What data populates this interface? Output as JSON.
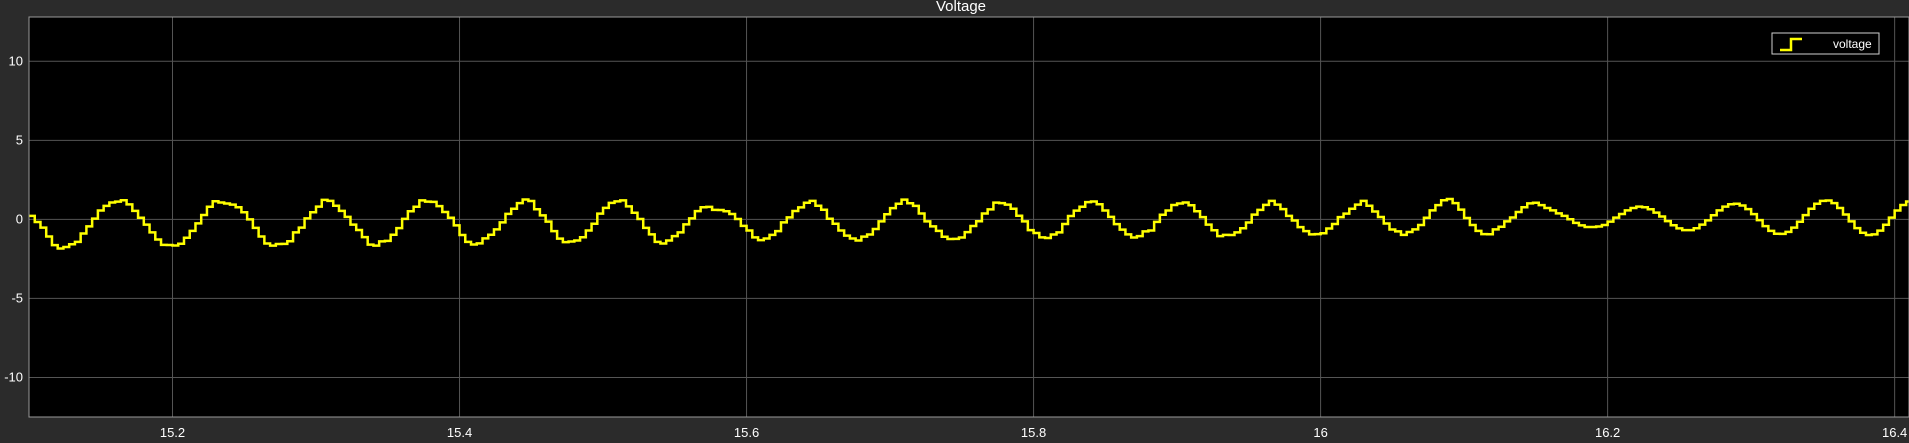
{
  "chart_data": {
    "type": "line",
    "title": "Voltage",
    "xlabel": "",
    "ylabel": "",
    "xlim": [
      15.1,
      16.41
    ],
    "ylim": [
      -12.5,
      12.8
    ],
    "grid": true,
    "legend_position": "top-right",
    "x_ticks": [
      15.2,
      15.4,
      15.6,
      15.8,
      16,
      16.2,
      16.4
    ],
    "x_tick_labels": [
      "15.2",
      "15.4",
      "15.6",
      "15.8",
      "16",
      "16.2",
      "16.4"
    ],
    "y_ticks": [
      10,
      5,
      0,
      -5,
      -10
    ],
    "y_tick_labels": [
      "10",
      "5",
      "0",
      "-5",
      "-10"
    ],
    "series": [
      {
        "name": "voltage",
        "color": "#ffff00",
        "step": true,
        "x": [
          15.1,
          15.104,
          15.108,
          15.112,
          15.116,
          15.12,
          15.124,
          15.128,
          15.132,
          15.136,
          15.14,
          15.144,
          15.148,
          15.152,
          15.156,
          15.16,
          15.164,
          15.168,
          15.172,
          15.176,
          15.18,
          15.184,
          15.188,
          15.192,
          15.196,
          15.2,
          15.204,
          15.208,
          15.212,
          15.216,
          15.22,
          15.224,
          15.228,
          15.232,
          15.236,
          15.24,
          15.244,
          15.248,
          15.252,
          15.256,
          15.26,
          15.264,
          15.268,
          15.272,
          15.276,
          15.28,
          15.284,
          15.288,
          15.292,
          15.296,
          15.3,
          15.304,
          15.308,
          15.312,
          15.316,
          15.32,
          15.324,
          15.328,
          15.332,
          15.336,
          15.34,
          15.344,
          15.348,
          15.352,
          15.356,
          15.36,
          15.364,
          15.368,
          15.372,
          15.376,
          15.38,
          15.384,
          15.388,
          15.392,
          15.396,
          15.4,
          15.404,
          15.408,
          15.412,
          15.416,
          15.42,
          15.424,
          15.428,
          15.432,
          15.436,
          15.44,
          15.444,
          15.448,
          15.452,
          15.456,
          15.46,
          15.464,
          15.468,
          15.472,
          15.476,
          15.48,
          15.484,
          15.488,
          15.492,
          15.496,
          15.5,
          15.504,
          15.508,
          15.512,
          15.516,
          15.52,
          15.524,
          15.528,
          15.532,
          15.536,
          15.54,
          15.544,
          15.548,
          15.552,
          15.556,
          15.56,
          15.564,
          15.568,
          15.572,
          15.576,
          15.58,
          15.584,
          15.588,
          15.592,
          15.596,
          15.6,
          15.604,
          15.608,
          15.612,
          15.616,
          15.62,
          15.624,
          15.628,
          15.632,
          15.636,
          15.64,
          15.644,
          15.648,
          15.652,
          15.656,
          15.66,
          15.664,
          15.668,
          15.672,
          15.676,
          15.68,
          15.684,
          15.688,
          15.692,
          15.696,
          15.7,
          15.704,
          15.708,
          15.712,
          15.716,
          15.72,
          15.724,
          15.728,
          15.732,
          15.736,
          15.74,
          15.744,
          15.748,
          15.752,
          15.756,
          15.76,
          15.764,
          15.768,
          15.772,
          15.776,
          15.78,
          15.784,
          15.788,
          15.792,
          15.796,
          15.8,
          15.804,
          15.808,
          15.812,
          15.816,
          15.82,
          15.824,
          15.828,
          15.832,
          15.836,
          15.84,
          15.844,
          15.848,
          15.852,
          15.856,
          15.86,
          15.864,
          15.868,
          15.872,
          15.876,
          15.88,
          15.884,
          15.888,
          15.892,
          15.896,
          15.9,
          15.904,
          15.908,
          15.912,
          15.916,
          15.92,
          15.924,
          15.928,
          15.932,
          15.936,
          15.94,
          15.944,
          15.948,
          15.952,
          15.956,
          15.96,
          15.964,
          15.968,
          15.972,
          15.976,
          15.98,
          15.984,
          15.988,
          15.992,
          15.996,
          16.0,
          16.004,
          16.008,
          16.012,
          16.016,
          16.02,
          16.024,
          16.028,
          16.032,
          16.036,
          16.04,
          16.044,
          16.048,
          16.052,
          16.056,
          16.06,
          16.064,
          16.068,
          16.072,
          16.076,
          16.08,
          16.084,
          16.088,
          16.092,
          16.096,
          16.1,
          16.104,
          16.108,
          16.112,
          16.116,
          16.12,
          16.124,
          16.128,
          16.132,
          16.136,
          16.14,
          16.144,
          16.148,
          16.152,
          16.156,
          16.16,
          16.164,
          16.168,
          16.172,
          16.176,
          16.18,
          16.184,
          16.188,
          16.192,
          16.196,
          16.2,
          16.204,
          16.208,
          16.212,
          16.216,
          16.22,
          16.224,
          16.228,
          16.232,
          16.236,
          16.24,
          16.244,
          16.248,
          16.252,
          16.256,
          16.26,
          16.264,
          16.268,
          16.272,
          16.276,
          16.28,
          16.284,
          16.288,
          16.292,
          16.296,
          16.3,
          16.304,
          16.308,
          16.312,
          16.316,
          16.32,
          16.324,
          16.328,
          16.332,
          16.336,
          16.34,
          16.344,
          16.348,
          16.352,
          16.356,
          16.36,
          16.364,
          16.368,
          16.372,
          16.376,
          16.38,
          16.384,
          16.388,
          16.392,
          16.396,
          16.4,
          16.404,
          16.408
        ],
        "y": [
          0.22,
          -0.17,
          -0.52,
          -1.08,
          -1.63,
          -1.84,
          -1.75,
          -1.57,
          -1.42,
          -0.89,
          -0.44,
          0.05,
          0.56,
          0.85,
          1.07,
          1.12,
          1.21,
          0.95,
          0.54,
          0.1,
          -0.33,
          -0.82,
          -1.27,
          -1.61,
          -1.62,
          -1.65,
          -1.54,
          -1.16,
          -0.73,
          -0.25,
          0.28,
          0.8,
          1.15,
          1.07,
          1.0,
          0.93,
          0.77,
          0.45,
          0.0,
          -0.54,
          -1.08,
          -1.53,
          -1.66,
          -1.56,
          -1.55,
          -1.38,
          -0.82,
          -0.52,
          0.06,
          0.45,
          0.81,
          1.23,
          1.17,
          0.86,
          0.54,
          0.16,
          -0.33,
          -0.67,
          -1.12,
          -1.6,
          -1.66,
          -1.39,
          -1.36,
          -0.97,
          -0.55,
          0.03,
          0.51,
          0.8,
          1.2,
          1.12,
          1.11,
          0.84,
          0.47,
          0.1,
          -0.38,
          -0.99,
          -1.42,
          -1.59,
          -1.52,
          -1.2,
          -0.97,
          -0.63,
          -0.19,
          0.35,
          0.67,
          1.03,
          1.26,
          1.16,
          0.64,
          0.25,
          -0.14,
          -0.74,
          -1.22,
          -1.44,
          -1.4,
          -1.34,
          -1.13,
          -0.7,
          -0.28,
          0.36,
          0.73,
          1.04,
          1.14,
          1.2,
          0.82,
          0.42,
          0.02,
          -0.54,
          -0.95,
          -1.42,
          -1.53,
          -1.34,
          -1.06,
          -0.82,
          -0.32,
          0.06,
          0.52,
          0.77,
          0.79,
          0.6,
          0.59,
          0.51,
          0.34,
          0.02,
          -0.41,
          -0.7,
          -1.14,
          -1.31,
          -1.21,
          -0.98,
          -0.74,
          -0.19,
          0.13,
          0.53,
          0.76,
          1.05,
          1.17,
          0.86,
          0.61,
          0.04,
          -0.28,
          -0.7,
          -1.03,
          -1.21,
          -1.34,
          -1.09,
          -0.96,
          -0.61,
          -0.13,
          0.32,
          0.71,
          0.99,
          1.25,
          1.02,
          0.85,
          0.37,
          -0.13,
          -0.44,
          -0.73,
          -1.1,
          -1.24,
          -1.23,
          -1.15,
          -0.81,
          -0.42,
          -0.12,
          0.37,
          0.63,
          1.06,
          1.03,
          0.93,
          0.67,
          0.23,
          -0.13,
          -0.68,
          -0.86,
          -1.14,
          -1.18,
          -0.96,
          -0.82,
          -0.29,
          0.21,
          0.55,
          0.8,
          1.09,
          1.13,
          0.96,
          0.56,
          0.16,
          -0.3,
          -0.65,
          -0.95,
          -1.15,
          -1.06,
          -0.76,
          -0.7,
          -0.16,
          0.29,
          0.56,
          0.91,
          1.0,
          1.07,
          0.89,
          0.51,
          0.14,
          -0.33,
          -0.69,
          -1.06,
          -0.98,
          -0.99,
          -0.82,
          -0.56,
          -0.2,
          0.3,
          0.6,
          0.92,
          1.17,
          0.93,
          0.65,
          0.22,
          -0.07,
          -0.49,
          -0.74,
          -0.95,
          -0.93,
          -0.88,
          -0.58,
          -0.29,
          0.14,
          0.36,
          0.67,
          0.93,
          1.17,
          0.86,
          0.5,
          0.15,
          -0.26,
          -0.64,
          -0.76,
          -0.98,
          -0.8,
          -0.63,
          -0.36,
          0.1,
          0.57,
          0.9,
          1.21,
          1.29,
          1.03,
          0.62,
          0.09,
          -0.36,
          -0.73,
          -0.93,
          -0.94,
          -0.63,
          -0.47,
          -0.13,
          0.12,
          0.47,
          0.77,
          1.01,
          1.05,
          0.9,
          0.72,
          0.57,
          0.38,
          0.22,
          0.01,
          -0.22,
          -0.38,
          -0.48,
          -0.48,
          -0.45,
          -0.36,
          -0.14,
          0.11,
          0.34,
          0.57,
          0.72,
          0.81,
          0.77,
          0.64,
          0.43,
          0.18,
          -0.11,
          -0.37,
          -0.57,
          -0.68,
          -0.68,
          -0.56,
          -0.33,
          -0.06,
          0.26,
          0.57,
          0.81,
          0.96,
          0.99,
          0.88,
          0.65,
          0.33,
          -0.05,
          -0.43,
          -0.73,
          -0.91,
          -0.92,
          -0.79,
          -0.52,
          -0.15,
          0.27,
          0.67,
          0.99,
          1.17,
          1.19,
          1.03,
          0.72,
          0.31,
          -0.13,
          -0.55,
          -0.85,
          -0.99,
          -0.95,
          -0.71,
          -0.34,
          0.11,
          0.56,
          0.91,
          1.13
        ]
      }
    ]
  }
}
